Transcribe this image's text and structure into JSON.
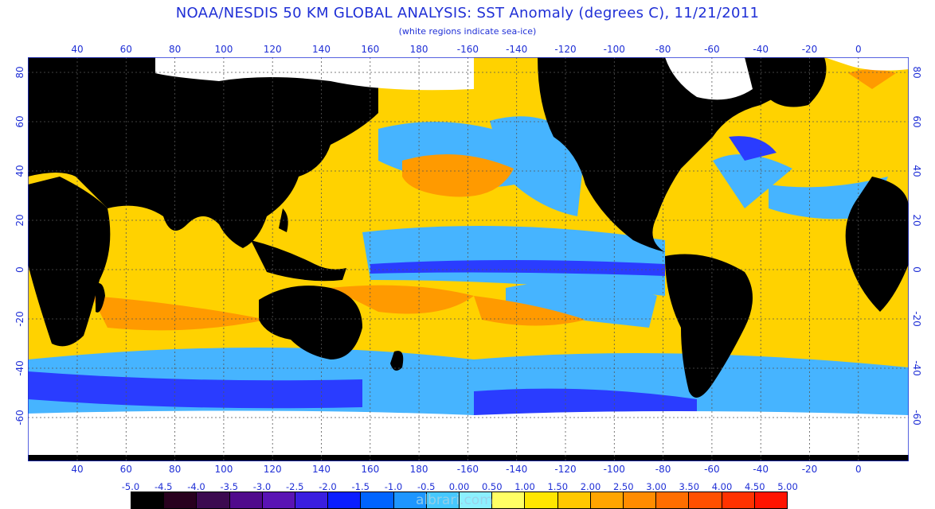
{
  "title": "NOAA/NESDIS 50 KM GLOBAL ANALYSIS: SST Anomaly (degrees C), 11/21/2011",
  "subtitle": "(white regions indicate sea-ice)",
  "longitude_ticks": [
    "40",
    "60",
    "80",
    "100",
    "120",
    "140",
    "160",
    "180",
    "-160",
    "-140",
    "-120",
    "-100",
    "-80",
    "-60",
    "-40",
    "-20",
    "0"
  ],
  "latitude_ticks_left": [
    "80",
    "60",
    "40",
    "20",
    "0",
    "-20",
    "-40",
    "-60"
  ],
  "latitude_ticks_right": [
    "80",
    "60",
    "40",
    "20",
    "0",
    "-20",
    "-40",
    "-60"
  ],
  "color_scale": {
    "labels": [
      "-5.0",
      "-4.5",
      "-4.0",
      "-3.5",
      "-3.0",
      "-2.5",
      "-2.0",
      "-1.5",
      "-1.0",
      "-0.5",
      "0.00",
      "0.50",
      "1.00",
      "1.50",
      "2.00",
      "2.50",
      "3.00",
      "3.50",
      "4.00",
      "4.50",
      "5.00"
    ],
    "colors": [
      "#000000",
      "#28001e",
      "#3c0a50",
      "#500a8c",
      "#5a14b4",
      "#3a1ee0",
      "#0a1eff",
      "#0064ff",
      "#1e96ff",
      "#46c8ff",
      "#8cf0ff",
      "#ffff64",
      "#ffe600",
      "#ffc800",
      "#ffa500",
      "#ff8c00",
      "#ff6e00",
      "#ff5000",
      "#ff3200",
      "#ff1400"
    ]
  },
  "colors": {
    "land": "#000000",
    "sea_ice": "#ffffff",
    "warm_anomaly": "#ffcc00",
    "cool_anomaly": "#3cb4ff",
    "text": "#1f2fd6"
  },
  "watermark": "albrari.com"
}
